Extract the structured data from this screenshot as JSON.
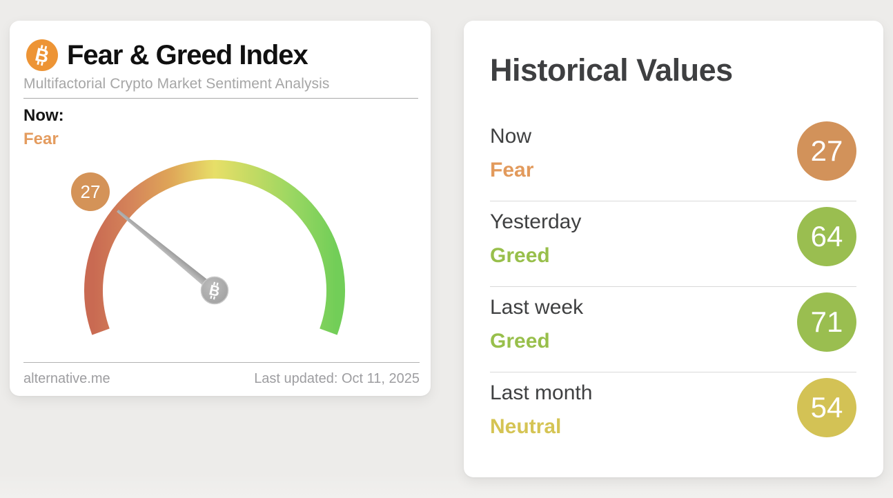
{
  "fng_card": {
    "title": "Fear & Greed Index",
    "subtitle": "Multifactorial Crypto Market Sentiment Analysis",
    "now_label": "Now:",
    "now_sentiment": "Fear",
    "now_sentiment_color": "#e49c5f",
    "badge_color": "#d49358",
    "bitcoin_color": "#ed9435",
    "footer": {
      "source": "alternative.me",
      "last_updated": "Last updated: Oct 11, 2025"
    }
  },
  "historical_card": {
    "title": "Historical Values",
    "rows": [
      {
        "label": "Now",
        "sentiment": "Fear",
        "value": 27,
        "sentiment_color": "#e29a5c",
        "circle_color": "#d2925a"
      },
      {
        "label": "Yesterday",
        "sentiment": "Greed",
        "value": 64,
        "sentiment_color": "#98bf4b",
        "circle_color": "#9abe50"
      },
      {
        "label": "Last week",
        "sentiment": "Greed",
        "value": 71,
        "sentiment_color": "#98bf4b",
        "circle_color": "#9abe50"
      },
      {
        "label": "Last month",
        "sentiment": "Neutral",
        "value": 54,
        "sentiment_color": "#d5c454",
        "circle_color": "#d3c255"
      }
    ]
  },
  "chart_data": {
    "type": "gauge",
    "title": "Fear & Greed Index",
    "value": 27,
    "classification": "Fear",
    "range": [
      0,
      100
    ],
    "arc_sweep_degrees": 220,
    "gradient": [
      "#c96a52",
      "#d5855a",
      "#dfa658",
      "#e7df68",
      "#c2da63",
      "#9ad762",
      "#72ce58"
    ],
    "last_updated": "Oct 11, 2025",
    "historical": [
      {
        "period": "Now",
        "classification": "Fear",
        "value": 27
      },
      {
        "period": "Yesterday",
        "classification": "Greed",
        "value": 64
      },
      {
        "period": "Last week",
        "classification": "Greed",
        "value": 71
      },
      {
        "period": "Last month",
        "classification": "Neutral",
        "value": 54
      }
    ]
  }
}
